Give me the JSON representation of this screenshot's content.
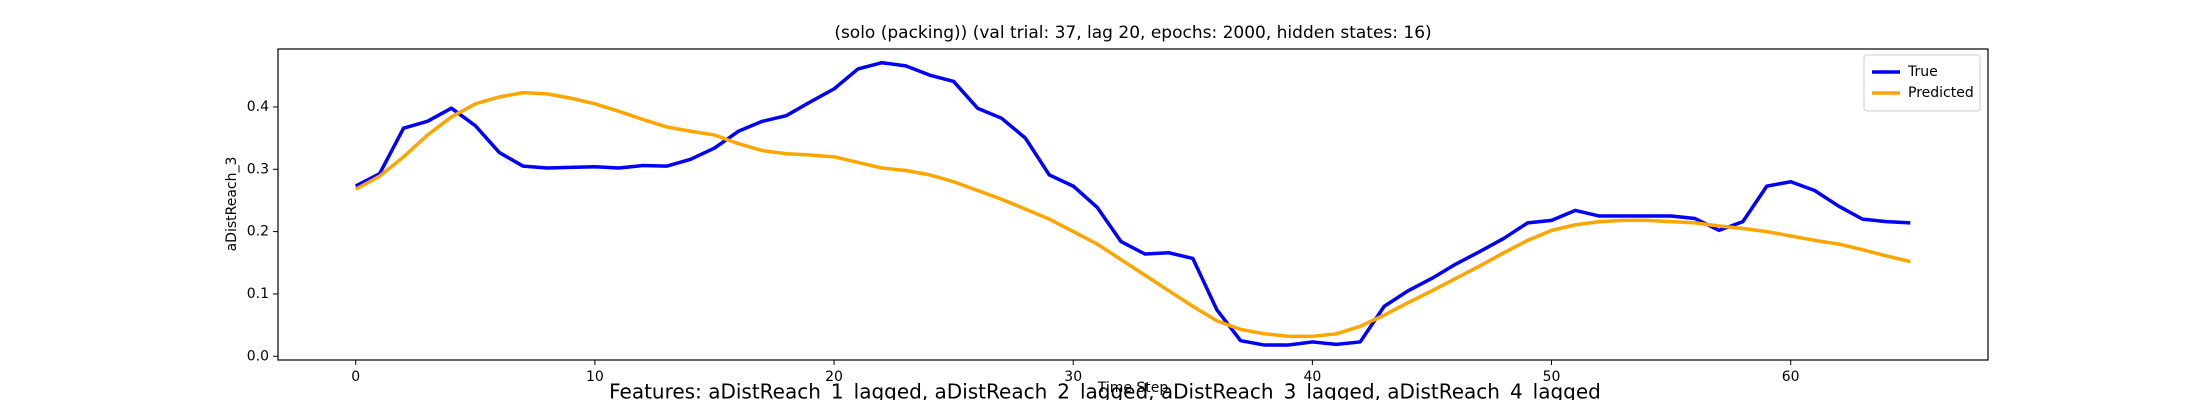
{
  "chart_data": {
    "type": "line",
    "title": "(solo (packing)) (val trial: 37, lag 20, epochs: 2000, hidden states: 16)",
    "xlabel": "Time Step",
    "ylabel": "aDistReach_3",
    "footer": "Features: aDistReach_1_lagged, aDistReach_2_lagged, aDistReach_3_lagged, aDistReach_4_lagged",
    "x": [
      0,
      1,
      2,
      3,
      4,
      5,
      6,
      7,
      8,
      9,
      10,
      11,
      12,
      13,
      14,
      15,
      16,
      17,
      18,
      19,
      20,
      21,
      22,
      23,
      24,
      25,
      26,
      27,
      28,
      29,
      30,
      31,
      32,
      33,
      34,
      35,
      36,
      37,
      38,
      39,
      40,
      41,
      42,
      43,
      44,
      45,
      46,
      47,
      48,
      49,
      50,
      51,
      52,
      53,
      54,
      55,
      56,
      57,
      58,
      59,
      60,
      61,
      62,
      63,
      64,
      65
    ],
    "series": [
      {
        "name": "True",
        "color": "#0000ff",
        "values": [
          0.273,
          0.293,
          0.366,
          0.377,
          0.398,
          0.37,
          0.327,
          0.305,
          0.302,
          0.303,
          0.304,
          0.302,
          0.306,
          0.305,
          0.316,
          0.334,
          0.361,
          0.377,
          0.386,
          0.408,
          0.429,
          0.461,
          0.471,
          0.466,
          0.451,
          0.441,
          0.398,
          0.382,
          0.35,
          0.291,
          0.273,
          0.239,
          0.184,
          0.164,
          0.166,
          0.157,
          0.075,
          0.025,
          0.018,
          0.018,
          0.023,
          0.019,
          0.023,
          0.08,
          0.105,
          0.125,
          0.148,
          0.168,
          0.189,
          0.214,
          0.218,
          0.234,
          0.225,
          0.225,
          0.225,
          0.225,
          0.221,
          0.202,
          0.216,
          0.273,
          0.28,
          0.266,
          0.241,
          0.22,
          0.216,
          0.214
        ]
      },
      {
        "name": "Predicted",
        "color": "#ffa500",
        "values": [
          0.268,
          0.289,
          0.32,
          0.355,
          0.384,
          0.405,
          0.416,
          0.423,
          0.421,
          0.414,
          0.405,
          0.393,
          0.38,
          0.368,
          0.361,
          0.355,
          0.341,
          0.33,
          0.325,
          0.323,
          0.32,
          0.311,
          0.302,
          0.298,
          0.291,
          0.28,
          0.266,
          0.252,
          0.236,
          0.22,
          0.2,
          0.18,
          0.155,
          0.13,
          0.105,
          0.08,
          0.057,
          0.043,
          0.036,
          0.032,
          0.032,
          0.036,
          0.048,
          0.066,
          0.086,
          0.105,
          0.125,
          0.145,
          0.166,
          0.186,
          0.202,
          0.211,
          0.216,
          0.218,
          0.218,
          0.216,
          0.214,
          0.209,
          0.205,
          0.2,
          0.193,
          0.186,
          0.18,
          0.171,
          0.161,
          0.152
        ]
      }
    ],
    "xlim": [
      -3.25,
      68.25
    ],
    "ylim": [
      -0.006,
      0.493
    ],
    "xticks": [
      0,
      10,
      20,
      30,
      40,
      50,
      60
    ],
    "yticks": [
      {
        "value": 0,
        "label": "0.0"
      },
      0.1,
      0.2,
      0.3,
      0.4
    ],
    "legend": "upper right",
    "grid": false
  }
}
